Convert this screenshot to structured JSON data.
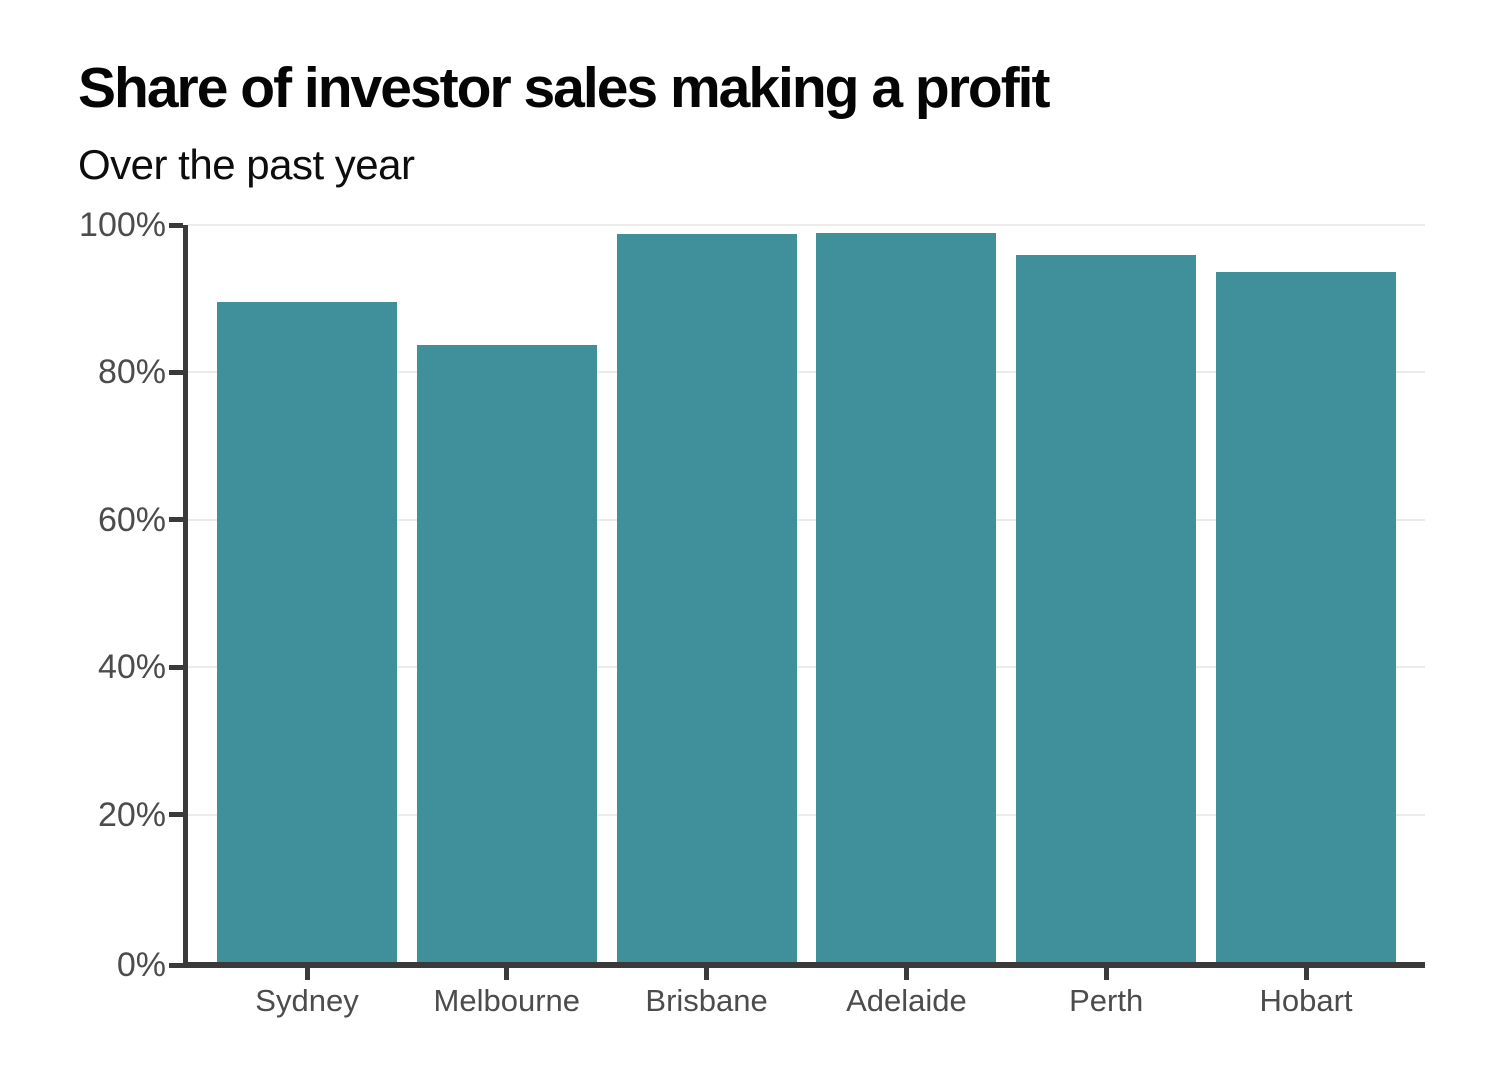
{
  "chart_data": {
    "type": "bar",
    "title": "Share of investor sales making a profit",
    "subtitle": "Over the past year",
    "categories": [
      "Sydney",
      "Melbourne",
      "Brisbane",
      "Adelaide",
      "Perth",
      "Hobart"
    ],
    "values": [
      89.6,
      83.7,
      98.8,
      98.9,
      95.9,
      93.6
    ],
    "unit": "%",
    "ylim": [
      0,
      100
    ],
    "y_tick_values": [
      0,
      20,
      40,
      60,
      80,
      100
    ],
    "y_tick_labels": [
      "0%",
      "20%",
      "40%",
      "60%",
      "80%",
      "100%"
    ],
    "grid": true,
    "legend": false,
    "colors": {
      "bar": "#40909C",
      "axis": "#3a3a3a",
      "gridline": "#ebebeb",
      "tick_label": "#4c4c4c",
      "title": "#050505",
      "background": "#ffffff"
    }
  }
}
